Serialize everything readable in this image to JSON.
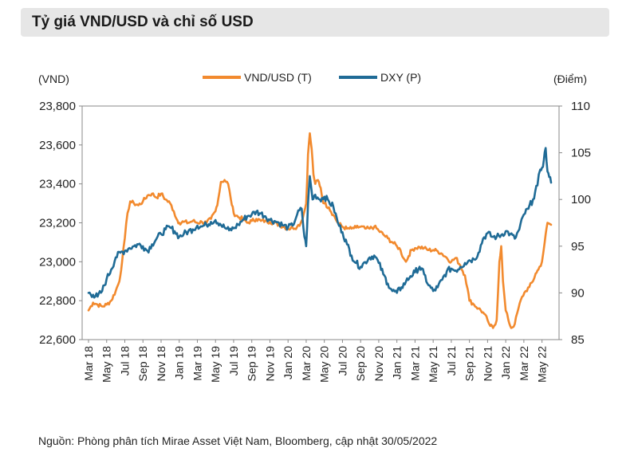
{
  "title": "Tỷ giá VND/USD và chỉ số USD",
  "source": "Nguồn: Phòng phân tích Mirae Asset Việt Nam, Bloomberg, cập nhật 30/05/2022",
  "colors": {
    "vnd": "#f28a2e",
    "dxy": "#1f6b96",
    "title_bg": "#e6e6e6"
  },
  "chart_data": {
    "type": "line",
    "title": "Tỷ giá VND/USD và chỉ số USD",
    "xlabel": "",
    "left_axis": {
      "unit": "(VND)",
      "min": 22600,
      "max": 23800,
      "ticks": [
        "22,600",
        "22,800",
        "23,000",
        "23,200",
        "23,400",
        "23,600",
        "23,800"
      ],
      "tick_values": [
        22600,
        22800,
        23000,
        23200,
        23400,
        23600,
        23800
      ]
    },
    "right_axis": {
      "unit": "(Điểm)",
      "min": 85,
      "max": 110,
      "ticks": [
        "85",
        "90",
        "95",
        "100",
        "105",
        "110"
      ],
      "tick_values": [
        85,
        90,
        95,
        100,
        105,
        110
      ]
    },
    "x_range": [
      0,
      51
    ],
    "x_ticks": [
      {
        "label": "Mar 18",
        "t": 0
      },
      {
        "label": "May 18",
        "t": 2
      },
      {
        "label": "Jul 18",
        "t": 4
      },
      {
        "label": "Sep 18",
        "t": 6
      },
      {
        "label": "Nov 18",
        "t": 8
      },
      {
        "label": "Jan 19",
        "t": 10
      },
      {
        "label": "Mar 19",
        "t": 12
      },
      {
        "label": "May 19",
        "t": 14
      },
      {
        "label": "Jul 19",
        "t": 16
      },
      {
        "label": "Sep 19",
        "t": 18
      },
      {
        "label": "Nov 19",
        "t": 20
      },
      {
        "label": "Jan 20",
        "t": 22
      },
      {
        "label": "Mar 20",
        "t": 24
      },
      {
        "label": "May 20",
        "t": 26
      },
      {
        "label": "Jul 20",
        "t": 28
      },
      {
        "label": "Sep 20",
        "t": 30
      },
      {
        "label": "Nov 20",
        "t": 32
      },
      {
        "label": "Jan 21",
        "t": 34
      },
      {
        "label": "Mar 21",
        "t": 36
      },
      {
        "label": "May 21",
        "t": 38
      },
      {
        "label": "Jul 21",
        "t": 40
      },
      {
        "label": "Sep 21",
        "t": 42
      },
      {
        "label": "Nov 21",
        "t": 44
      },
      {
        "label": "Jan 22",
        "t": 46
      },
      {
        "label": "Mar 22",
        "t": 48
      },
      {
        "label": "May 22",
        "t": 50
      }
    ],
    "legend": [
      "VND/USD (T)",
      "DXY (P)"
    ],
    "legend_position": "top-center",
    "series": [
      {
        "name": "VND/USD (T)",
        "axis": "left",
        "points": [
          [
            0,
            22750
          ],
          [
            0.5,
            22790
          ],
          [
            1,
            22780
          ],
          [
            1.5,
            22770
          ],
          [
            2,
            22780
          ],
          [
            2.5,
            22800
          ],
          [
            3,
            22850
          ],
          [
            3.4,
            22900
          ],
          [
            3.7,
            23000
          ],
          [
            4,
            23120
          ],
          [
            4.3,
            23250
          ],
          [
            4.6,
            23310
          ],
          [
            5,
            23300
          ],
          [
            5.5,
            23290
          ],
          [
            6,
            23310
          ],
          [
            6.5,
            23340
          ],
          [
            7,
            23350
          ],
          [
            7.5,
            23330
          ],
          [
            8,
            23350
          ],
          [
            8.5,
            23320
          ],
          [
            9,
            23300
          ],
          [
            9.4,
            23260
          ],
          [
            9.7,
            23220
          ],
          [
            10,
            23200
          ],
          [
            10.5,
            23205
          ],
          [
            11,
            23200
          ],
          [
            11.5,
            23210
          ],
          [
            12,
            23200
          ],
          [
            12.5,
            23205
          ],
          [
            13,
            23200
          ],
          [
            13.5,
            23220
          ],
          [
            14,
            23260
          ],
          [
            14.3,
            23320
          ],
          [
            14.6,
            23410
          ],
          [
            15,
            23420
          ],
          [
            15.4,
            23400
          ],
          [
            15.7,
            23320
          ],
          [
            16,
            23250
          ],
          [
            16.5,
            23230
          ],
          [
            17,
            23220
          ],
          [
            17.5,
            23200
          ],
          [
            18,
            23210
          ],
          [
            18.5,
            23220
          ],
          [
            19,
            23210
          ],
          [
            19.5,
            23210
          ],
          [
            20,
            23205
          ],
          [
            20.5,
            23200
          ],
          [
            21,
            23190
          ],
          [
            21.5,
            23180
          ],
          [
            22,
            23170
          ],
          [
            22.5,
            23175
          ],
          [
            23,
            23180
          ],
          [
            23.4,
            23200
          ],
          [
            23.7,
            23240
          ],
          [
            24,
            23300
          ],
          [
            24.2,
            23550
          ],
          [
            24.4,
            23660
          ],
          [
            24.6,
            23580
          ],
          [
            24.8,
            23450
          ],
          [
            25,
            23400
          ],
          [
            25.3,
            23420
          ],
          [
            25.6,
            23380
          ],
          [
            25.8,
            23320
          ],
          [
            26,
            23300
          ],
          [
            26.5,
            23280
          ],
          [
            27,
            23240
          ],
          [
            27.5,
            23200
          ],
          [
            28,
            23180
          ],
          [
            28.5,
            23170
          ],
          [
            29,
            23170
          ],
          [
            29.5,
            23175
          ],
          [
            30,
            23180
          ],
          [
            30.5,
            23170
          ],
          [
            31,
            23170
          ],
          [
            31.5,
            23180
          ],
          [
            32,
            23160
          ],
          [
            32.5,
            23140
          ],
          [
            33,
            23120
          ],
          [
            33.5,
            23100
          ],
          [
            34,
            23080
          ],
          [
            34.4,
            23060
          ],
          [
            34.7,
            23020
          ],
          [
            35,
            23000
          ],
          [
            35.3,
            23030
          ],
          [
            35.6,
            23060
          ],
          [
            36,
            23070
          ],
          [
            36.5,
            23075
          ],
          [
            37,
            23070
          ],
          [
            37.5,
            23060
          ],
          [
            38,
            23060
          ],
          [
            38.5,
            23055
          ],
          [
            39,
            23040
          ],
          [
            39.5,
            23020
          ],
          [
            40,
            23000
          ],
          [
            40.5,
            23020
          ],
          [
            41,
            22980
          ],
          [
            41.5,
            22930
          ],
          [
            41.8,
            22860
          ],
          [
            42,
            22800
          ],
          [
            42.5,
            22780
          ],
          [
            43,
            22760
          ],
          [
            43.5,
            22740
          ],
          [
            44,
            22700
          ],
          [
            44.3,
            22670
          ],
          [
            44.6,
            22660
          ],
          [
            45,
            22700
          ],
          [
            45.3,
            23000
          ],
          [
            45.5,
            23080
          ],
          [
            45.7,
            22900
          ],
          [
            46,
            22750
          ],
          [
            46.3,
            22700
          ],
          [
            46.6,
            22660
          ],
          [
            47,
            22680
          ],
          [
            47.4,
            22760
          ],
          [
            47.8,
            22820
          ],
          [
            48.2,
            22850
          ],
          [
            48.6,
            22870
          ],
          [
            49,
            22900
          ],
          [
            49.3,
            22940
          ],
          [
            49.6,
            22960
          ],
          [
            50,
            23000
          ],
          [
            50.3,
            23100
          ],
          [
            50.6,
            23200
          ],
          [
            51,
            23190
          ]
        ]
      },
      {
        "name": "DXY (P)",
        "axis": "right",
        "points": [
          [
            0,
            90.0
          ],
          [
            0.5,
            89.8
          ],
          [
            1,
            89.6
          ],
          [
            1.5,
            90.2
          ],
          [
            2,
            91.5
          ],
          [
            2.5,
            92.5
          ],
          [
            3,
            93.8
          ],
          [
            3.5,
            94.3
          ],
          [
            4,
            94.5
          ],
          [
            4.5,
            94.8
          ],
          [
            5,
            95.0
          ],
          [
            5.5,
            95.2
          ],
          [
            6,
            95.0
          ],
          [
            6.5,
            94.5
          ],
          [
            7,
            95.2
          ],
          [
            7.5,
            95.8
          ],
          [
            8,
            96.3
          ],
          [
            8.5,
            96.8
          ],
          [
            9,
            97.0
          ],
          [
            9.5,
            96.6
          ],
          [
            10,
            96.0
          ],
          [
            10.5,
            96.3
          ],
          [
            11,
            96.6
          ],
          [
            11.5,
            96.8
          ],
          [
            12,
            97.2
          ],
          [
            12.5,
            97.1
          ],
          [
            13,
            97.3
          ],
          [
            13.5,
            97.6
          ],
          [
            14,
            97.8
          ],
          [
            14.5,
            97.4
          ],
          [
            15,
            97.0
          ],
          [
            15.5,
            96.7
          ],
          [
            16,
            96.9
          ],
          [
            16.5,
            97.3
          ],
          [
            17,
            97.8
          ],
          [
            17.5,
            98.2
          ],
          [
            18,
            98.4
          ],
          [
            18.5,
            98.7
          ],
          [
            19,
            98.5
          ],
          [
            19.5,
            98.2
          ],
          [
            20,
            97.8
          ],
          [
            20.5,
            97.7
          ],
          [
            21,
            97.5
          ],
          [
            21.5,
            97.2
          ],
          [
            22,
            97.0
          ],
          [
            22.5,
            97.2
          ],
          [
            23,
            98.4
          ],
          [
            23.5,
            99.0
          ],
          [
            23.8,
            96.0
          ],
          [
            24,
            95.0
          ],
          [
            24.2,
            99.5
          ],
          [
            24.4,
            102.5
          ],
          [
            24.7,
            100.0
          ],
          [
            25,
            100.5
          ],
          [
            25.5,
            100.0
          ],
          [
            26,
            100.3
          ],
          [
            26.5,
            99.8
          ],
          [
            27,
            99.2
          ],
          [
            27.5,
            97.5
          ],
          [
            28,
            96.5
          ],
          [
            28.5,
            95.2
          ],
          [
            29,
            94.0
          ],
          [
            29.5,
            93.2
          ],
          [
            30,
            92.8
          ],
          [
            30.5,
            93.3
          ],
          [
            31,
            93.8
          ],
          [
            31.5,
            94.0
          ],
          [
            32,
            93.2
          ],
          [
            32.5,
            92.0
          ],
          [
            33,
            91.0
          ],
          [
            33.5,
            90.2
          ],
          [
            34,
            90.0
          ],
          [
            34.5,
            90.6
          ],
          [
            35,
            91.2
          ],
          [
            35.5,
            91.8
          ],
          [
            36,
            92.2
          ],
          [
            36.5,
            92.8
          ],
          [
            37,
            92.0
          ],
          [
            37.5,
            90.8
          ],
          [
            38,
            90.2
          ],
          [
            38.5,
            90.6
          ],
          [
            39,
            91.4
          ],
          [
            39.5,
            92.3
          ],
          [
            40,
            92.6
          ],
          [
            40.5,
            92.4
          ],
          [
            41,
            92.8
          ],
          [
            41.5,
            93.2
          ],
          [
            42,
            93.5
          ],
          [
            42.5,
            93.6
          ],
          [
            43,
            94.3
          ],
          [
            43.5,
            95.8
          ],
          [
            44,
            96.4
          ],
          [
            44.5,
            96.0
          ],
          [
            45,
            96.0
          ],
          [
            45.5,
            96.2
          ],
          [
            46,
            96.6
          ],
          [
            46.5,
            96.3
          ],
          [
            47,
            95.8
          ],
          [
            47.5,
            96.8
          ],
          [
            48,
            98.4
          ],
          [
            48.5,
            99.0
          ],
          [
            49,
            100.0
          ],
          [
            49.5,
            101.5
          ],
          [
            49.8,
            103.2
          ],
          [
            50,
            103.4
          ],
          [
            50.2,
            104.2
          ],
          [
            50.4,
            105.5
          ],
          [
            50.6,
            103.0
          ],
          [
            50.8,
            102.4
          ],
          [
            51,
            101.8
          ]
        ]
      }
    ]
  }
}
